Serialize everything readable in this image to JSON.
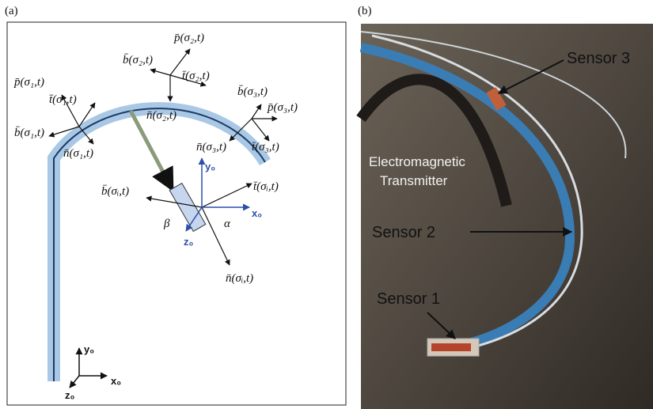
{
  "panel_a": {
    "label": "(a)",
    "labels": [
      "p̄(σ₂,t)",
      "b̄(σ₂,t)",
      "t̄(σ₂,t)",
      "n̄(σ₂,t)",
      "p̄(σ₁,t)",
      "t̄(σ₁,t)",
      "b̄(σ₁,t)",
      "n̄(σ₁,t)",
      "b̄(σ₃,t)",
      "p̄(σ₃,t)",
      "n̄(σ₃,t)",
      "t̄(σ₃,t)",
      "b̄(σᵢ,t)",
      "t̄(σᵢ,t)",
      "n̄(σᵢ,t)",
      "β",
      "α"
    ],
    "axes": {
      "y": "y₀",
      "x": "x₀",
      "z": "z₀"
    },
    "base_axes": {
      "y": "y₀",
      "x": "x₀",
      "z": "z₀"
    }
  },
  "panel_b": {
    "label": "(b)",
    "sensor_3": "Sensor 3",
    "transmitter": [
      "Electromagnetic",
      "Transmitter"
    ],
    "sensor_2": "Sensor 2",
    "sensor_1": "Sensor 1"
  }
}
